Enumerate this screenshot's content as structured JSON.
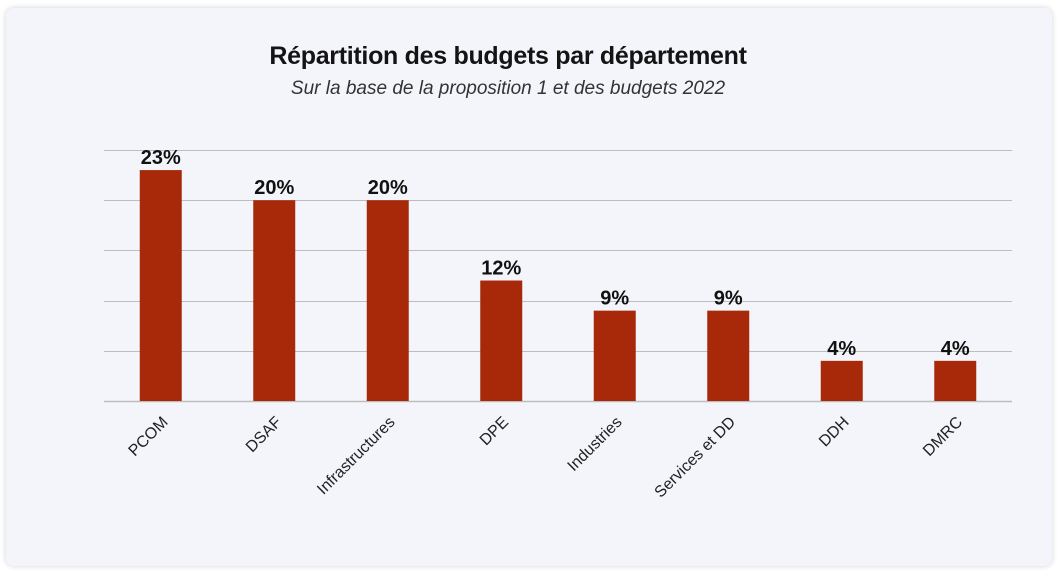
{
  "chart_data": {
    "type": "bar",
    "title": "Répartition des budgets par département",
    "subtitle": "Sur la base de la proposition 1 et des budgets 2022",
    "categories": [
      "PCOM",
      "DSAF",
      "Infrastructures",
      "DPE",
      "Industries",
      "Services et DD",
      "DDH",
      "DMRC"
    ],
    "values": [
      23,
      20,
      20,
      12,
      9,
      9,
      4,
      4
    ],
    "data_labels": [
      "23%",
      "20%",
      "20%",
      "12%",
      "9%",
      "9%",
      "4%",
      "4%"
    ],
    "unit": "%",
    "ylim": [
      0,
      25
    ],
    "grid": true,
    "bar_color": "#a8290a",
    "grid_color": "#bdbdbd",
    "xlabel": "",
    "ylabel": ""
  }
}
